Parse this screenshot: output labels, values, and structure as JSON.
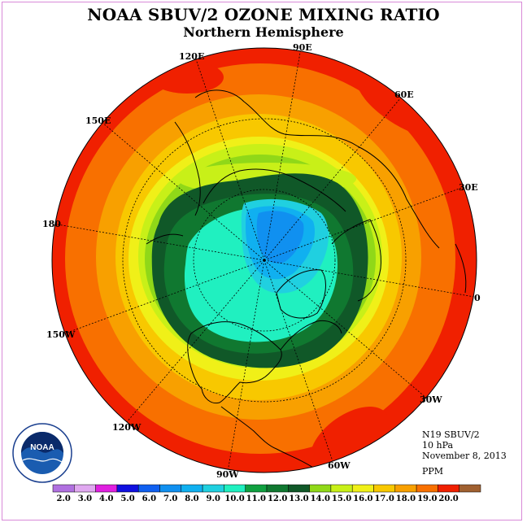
{
  "title": "NOAA SBUV/2 OZONE MIXING RATIO",
  "subtitle": "Northern Hemisphere",
  "longitude_labels": [
    "90E",
    "60E",
    "30E",
    "0",
    "30W",
    "60W",
    "90W",
    "120W",
    "150W",
    "180",
    "150E",
    "120E"
  ],
  "info": {
    "instrument": "N19 SBUV/2",
    "level": "10 hPa",
    "date": "November 8, 2013",
    "units": "PPM"
  },
  "colorbar": {
    "ticks": [
      "2.0",
      "3.0",
      "4.0",
      "5.0",
      "6.0",
      "7.0",
      "8.0",
      "9.0",
      "10.0",
      "11.0",
      "12.0",
      "13.0",
      "14.0",
      "15.0",
      "16.0",
      "17.0",
      "18.0",
      "19.0",
      "20.0"
    ],
    "colors": [
      "#b070e0",
      "#e0a8f0",
      "#e020e0",
      "#1010e0",
      "#1060f0",
      "#1090f0",
      "#10b0f0",
      "#20d0e0",
      "#20f0c0",
      "#10a040",
      "#107830",
      "#105828",
      "#90d818",
      "#c8f018",
      "#f0f018",
      "#f8c800",
      "#f8a000",
      "#f87000",
      "#f02000",
      "#a06030"
    ]
  },
  "logo_text": "NOAA"
}
